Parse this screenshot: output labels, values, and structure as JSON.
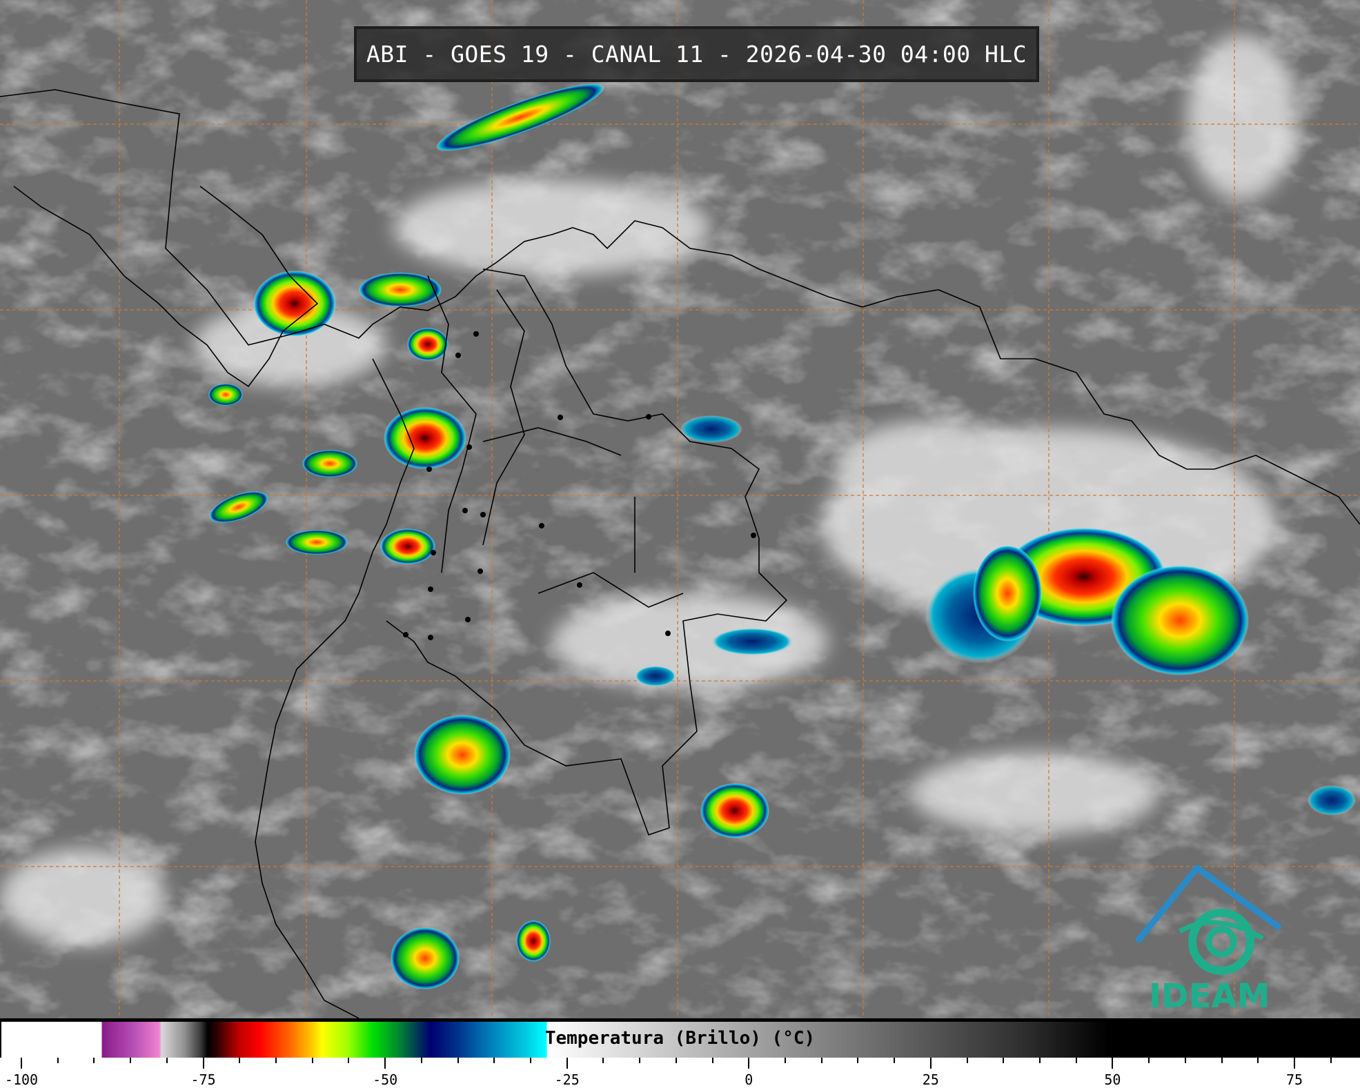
{
  "title": "ABI - GOES 19 - CANAL 11 - 2026-04-30 04:00 HLC",
  "colorbar": {
    "label": "Temperatura (Brillo) (°C)",
    "unit": "°C",
    "range": [
      -100,
      75
    ],
    "tick_labels": [
      "-100",
      "-75",
      "-50",
      "-25",
      "0",
      "25",
      "50",
      "75"
    ],
    "tick_values": [
      -100,
      -75,
      -50,
      -25,
      0,
      25,
      50,
      75
    ],
    "minor_tick_step": 5,
    "colors": {
      "coldest": "#ffffff",
      "purple": "#8a1a8a",
      "red": "#ff0000",
      "yellow": "#ffff00",
      "green": "#00e000",
      "navy": "#000070",
      "cyan": "#00ffff",
      "warm": "#000000"
    }
  },
  "map": {
    "background_color": "#6e6e6e",
    "grid_color": "#d07a30",
    "coastline_color": "#000000"
  },
  "logo": {
    "text": "IDEAM",
    "color": "#1fae8c"
  }
}
